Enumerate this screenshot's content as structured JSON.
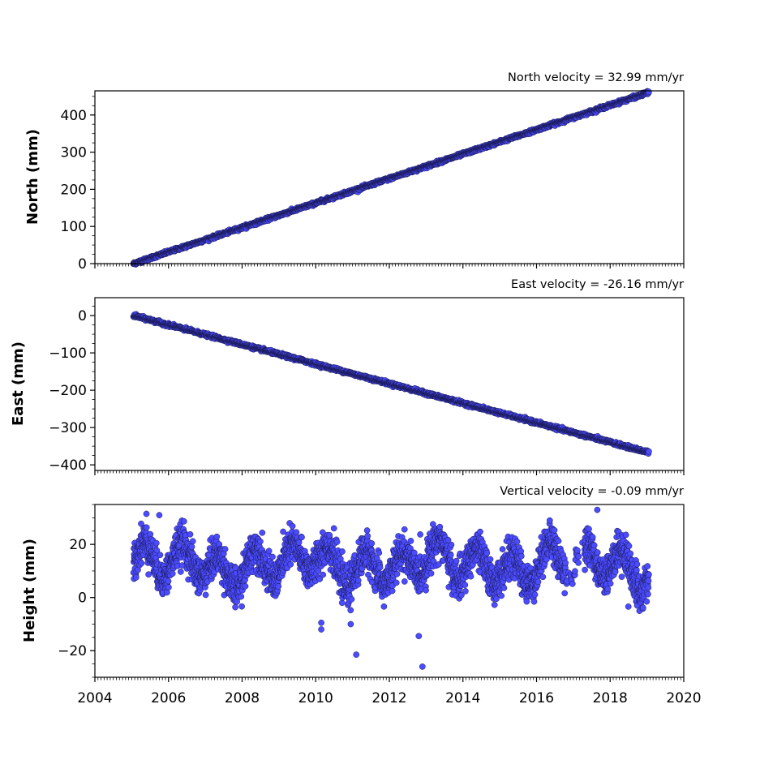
{
  "chart_data": [
    {
      "type": "scatter",
      "title": "North velocity = 32.99 mm/yr",
      "ylabel": "North (mm)",
      "xlabel": "",
      "xlim": [
        2004,
        2020
      ],
      "ylim": [
        0,
        465
      ],
      "yticks": [
        0,
        100,
        200,
        300,
        400
      ],
      "xticks": [
        2004,
        2006,
        2008,
        2010,
        2012,
        2014,
        2016,
        2018,
        2020
      ],
      "show_xtick_labels": false,
      "trend": {
        "x_start": 2005.05,
        "y_start": 0,
        "x_end": 2019.05,
        "y_end": 461
      },
      "noise_mm": 2,
      "marker_color": "#4b4bff",
      "marker_edge": "#1a1a55",
      "grid": false
    },
    {
      "type": "scatter",
      "title": "East velocity = -26.16 mm/yr",
      "ylabel": "East (mm)",
      "xlabel": "",
      "xlim": [
        2004,
        2020
      ],
      "ylim": [
        -415,
        48
      ],
      "yticks": [
        0,
        -100,
        -200,
        -300,
        -400
      ],
      "xticks": [
        2004,
        2006,
        2008,
        2010,
        2012,
        2014,
        2016,
        2018,
        2020
      ],
      "show_xtick_labels": false,
      "trend": {
        "x_start": 2005.05,
        "y_start": 0,
        "x_end": 2019.05,
        "y_end": -367
      },
      "noise_mm": 2,
      "marker_color": "#4b4bff",
      "marker_edge": "#1a1a55",
      "grid": false
    },
    {
      "type": "scatter",
      "title": "Vertical velocity = -0.09 mm/yr",
      "ylabel": "Height (mm)",
      "xlabel": "",
      "xlim": [
        2004,
        2020
      ],
      "ylim": [
        -30,
        35
      ],
      "yticks": [
        -20,
        0,
        20
      ],
      "xticks": [
        2004,
        2006,
        2008,
        2010,
        2012,
        2014,
        2016,
        2018,
        2020
      ],
      "show_xtick_labels": true,
      "x_start": 2005.05,
      "x_end": 2019.05,
      "mean_mm": 12.5,
      "seasonal_amplitude_mm": 6,
      "noise_mm": 3.5,
      "outliers": [
        {
          "x": 2010.15,
          "y": -12
        },
        {
          "x": 2010.15,
          "y": -9.5
        },
        {
          "x": 2010.95,
          "y": -10
        },
        {
          "x": 2011.1,
          "y": -21.5
        },
        {
          "x": 2012.8,
          "y": -14.5
        },
        {
          "x": 2012.9,
          "y": -26
        },
        {
          "x": 2005.4,
          "y": 31.5
        },
        {
          "x": 2005.75,
          "y": 31
        },
        {
          "x": 2017.65,
          "y": 33
        }
      ],
      "gap": [
        2016.8,
        2017.3
      ],
      "marker_color": "#4b4bff",
      "marker_edge": "#1a1a55",
      "grid": false
    }
  ]
}
